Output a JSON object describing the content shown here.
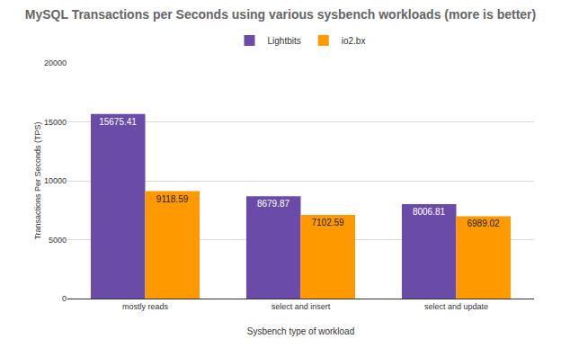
{
  "chart_data": {
    "type": "bar",
    "title": "MySQL Transactions per Seconds using various sysbench workloads (more is better)",
    "x_label": "Sysbench type of workload",
    "y_label": "Transactions Per Seconds (TPS)",
    "categories": [
      "mostly reads",
      "select and insert",
      "select and update"
    ],
    "series": [
      {
        "name": "Lightbits",
        "color": "#6a4ca8",
        "values": [
          15675.41,
          8679.87,
          8006.81
        ]
      },
      {
        "name": "io2.bx",
        "color": "#ff9900",
        "values": [
          9118.59,
          7102.59,
          6989.02
        ]
      }
    ],
    "ylim": [
      0,
      20000
    ],
    "yticks": [
      0,
      5000,
      10000,
      15000,
      20000
    ],
    "grid": true,
    "legend": "top",
    "data_labels": true
  }
}
